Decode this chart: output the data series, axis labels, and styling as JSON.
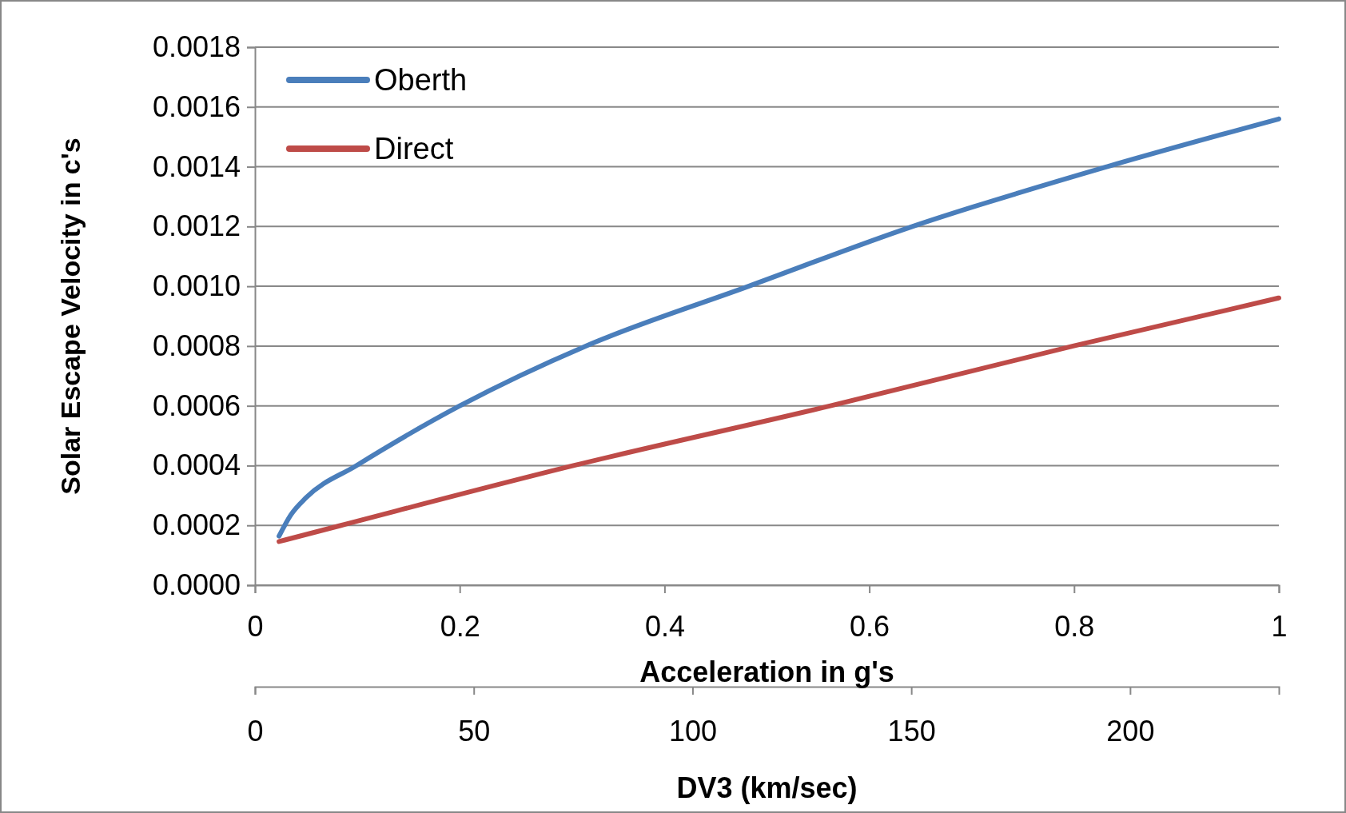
{
  "chart_data": {
    "type": "line",
    "xlabel": "Acceleration in g's",
    "ylabel": "Solar Escape  Velocity in c's",
    "x2label": "DV3 (km/sec)",
    "xlim": [
      0,
      1
    ],
    "xticks": [
      0,
      0.2,
      0.4,
      0.6,
      0.8,
      1
    ],
    "x2lim": [
      0,
      234
    ],
    "x2ticks": [
      0,
      50,
      100,
      150,
      200
    ],
    "ylim": [
      0,
      0.0018
    ],
    "yticks": [
      {
        "value": 0,
        "label": "0.0000"
      },
      {
        "value": 0.0002,
        "label": "0.0002"
      },
      {
        "value": 0.0004,
        "label": "0.0004"
      },
      {
        "value": 0.0006,
        "label": "0.0006"
      },
      {
        "value": 0.0008,
        "label": "0.0008"
      },
      {
        "value": 0.001,
        "label": "0.0010"
      },
      {
        "value": 0.0012,
        "label": "0.0012"
      },
      {
        "value": 0.0014,
        "label": "0.0014"
      },
      {
        "value": 0.0016,
        "label": "0.0016"
      },
      {
        "value": 0.0018,
        "label": "0.0018"
      }
    ],
    "grid": "y",
    "legend": "top left",
    "line_style": "solid",
    "marker": "none",
    "series": [
      {
        "name": "Oberth",
        "color": "#4a7ebb",
        "x": [
          0.0235,
          0.035,
          0.05,
          0.099,
          0.2,
          0.323,
          0.482,
          0.642,
          0.832,
          1
        ],
        "values": [
          0.000164,
          0.000235,
          0.000293,
          0.0004,
          0.0006,
          0.0008,
          0.001,
          0.0012,
          0.0014,
          0.00156
        ]
      },
      {
        "name": "Direct",
        "color": "#be4b48",
        "x": [
          0.0235,
          0.084,
          0.311,
          0.562,
          0.799,
          1
        ],
        "values": [
          0.000146,
          0.0002,
          0.0004,
          0.0006,
          0.0008,
          0.000961
        ]
      }
    ]
  }
}
